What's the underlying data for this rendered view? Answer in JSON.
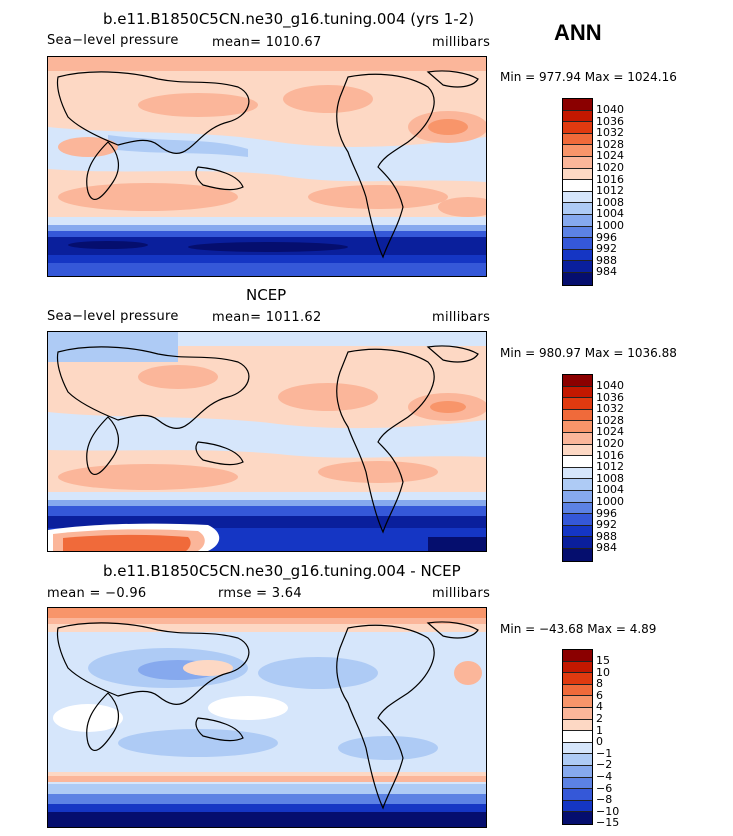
{
  "season": "ANN",
  "palette": {
    "abs": [
      "#8b0000",
      "#c31800",
      "#e03a10",
      "#f06a3a",
      "#f8956a",
      "#fbb69a",
      "#fdd8c4",
      "#ffffff",
      "#d6e6fb",
      "#aecbf5",
      "#86a9ee",
      "#5c82e4",
      "#3558d8",
      "#1536c4",
      "#0a1f9c",
      "#050e6e"
    ],
    "diff": [
      "#8b0000",
      "#c31800",
      "#e03a10",
      "#f06a3a",
      "#f8956a",
      "#fbb69a",
      "#fdd8c4",
      "#ffffff",
      "#d6e6fb",
      "#aecbf5",
      "#86a9ee",
      "#5c82e4",
      "#3558d8",
      "#1536c4",
      "#050e6e"
    ]
  },
  "panels": [
    {
      "id": "model",
      "title": "b.e11.B1850C5CN.ne30_g16.tuning.004 (yrs 1-2)",
      "left": "Sea−level pressure",
      "center": "mean=  1010.67",
      "units": "millibars",
      "minmax": "Min = 977.94  Max = 1024.16",
      "levels": [
        "1040",
        "1036",
        "1032",
        "1028",
        "1024",
        "1020",
        "1016",
        "1012",
        "1008",
        "1004",
        "1000",
        "996",
        "992",
        "988",
        "984"
      ]
    },
    {
      "id": "ncep",
      "title": "NCEP",
      "left": "Sea−level pressure",
      "center": "mean=  1011.62",
      "units": "millibars",
      "minmax": "Min = 980.97  Max = 1036.88",
      "levels": [
        "1040",
        "1036",
        "1032",
        "1028",
        "1024",
        "1020",
        "1016",
        "1012",
        "1008",
        "1004",
        "1000",
        "996",
        "992",
        "988",
        "984"
      ]
    },
    {
      "id": "diff",
      "title": "b.e11.B1850C5CN.ne30_g16.tuning.004 - NCEP",
      "left": "mean =   −0.96",
      "center": "rmse =    3.64",
      "units": "millibars",
      "minmax": "Min = −43.68  Max =    4.89",
      "levels": [
        "15",
        "10",
        "8",
        "6",
        "4",
        "2",
        "1",
        "0",
        "−1",
        "−2",
        "−4",
        "−6",
        "−8",
        "−10",
        "−15"
      ]
    }
  ]
}
